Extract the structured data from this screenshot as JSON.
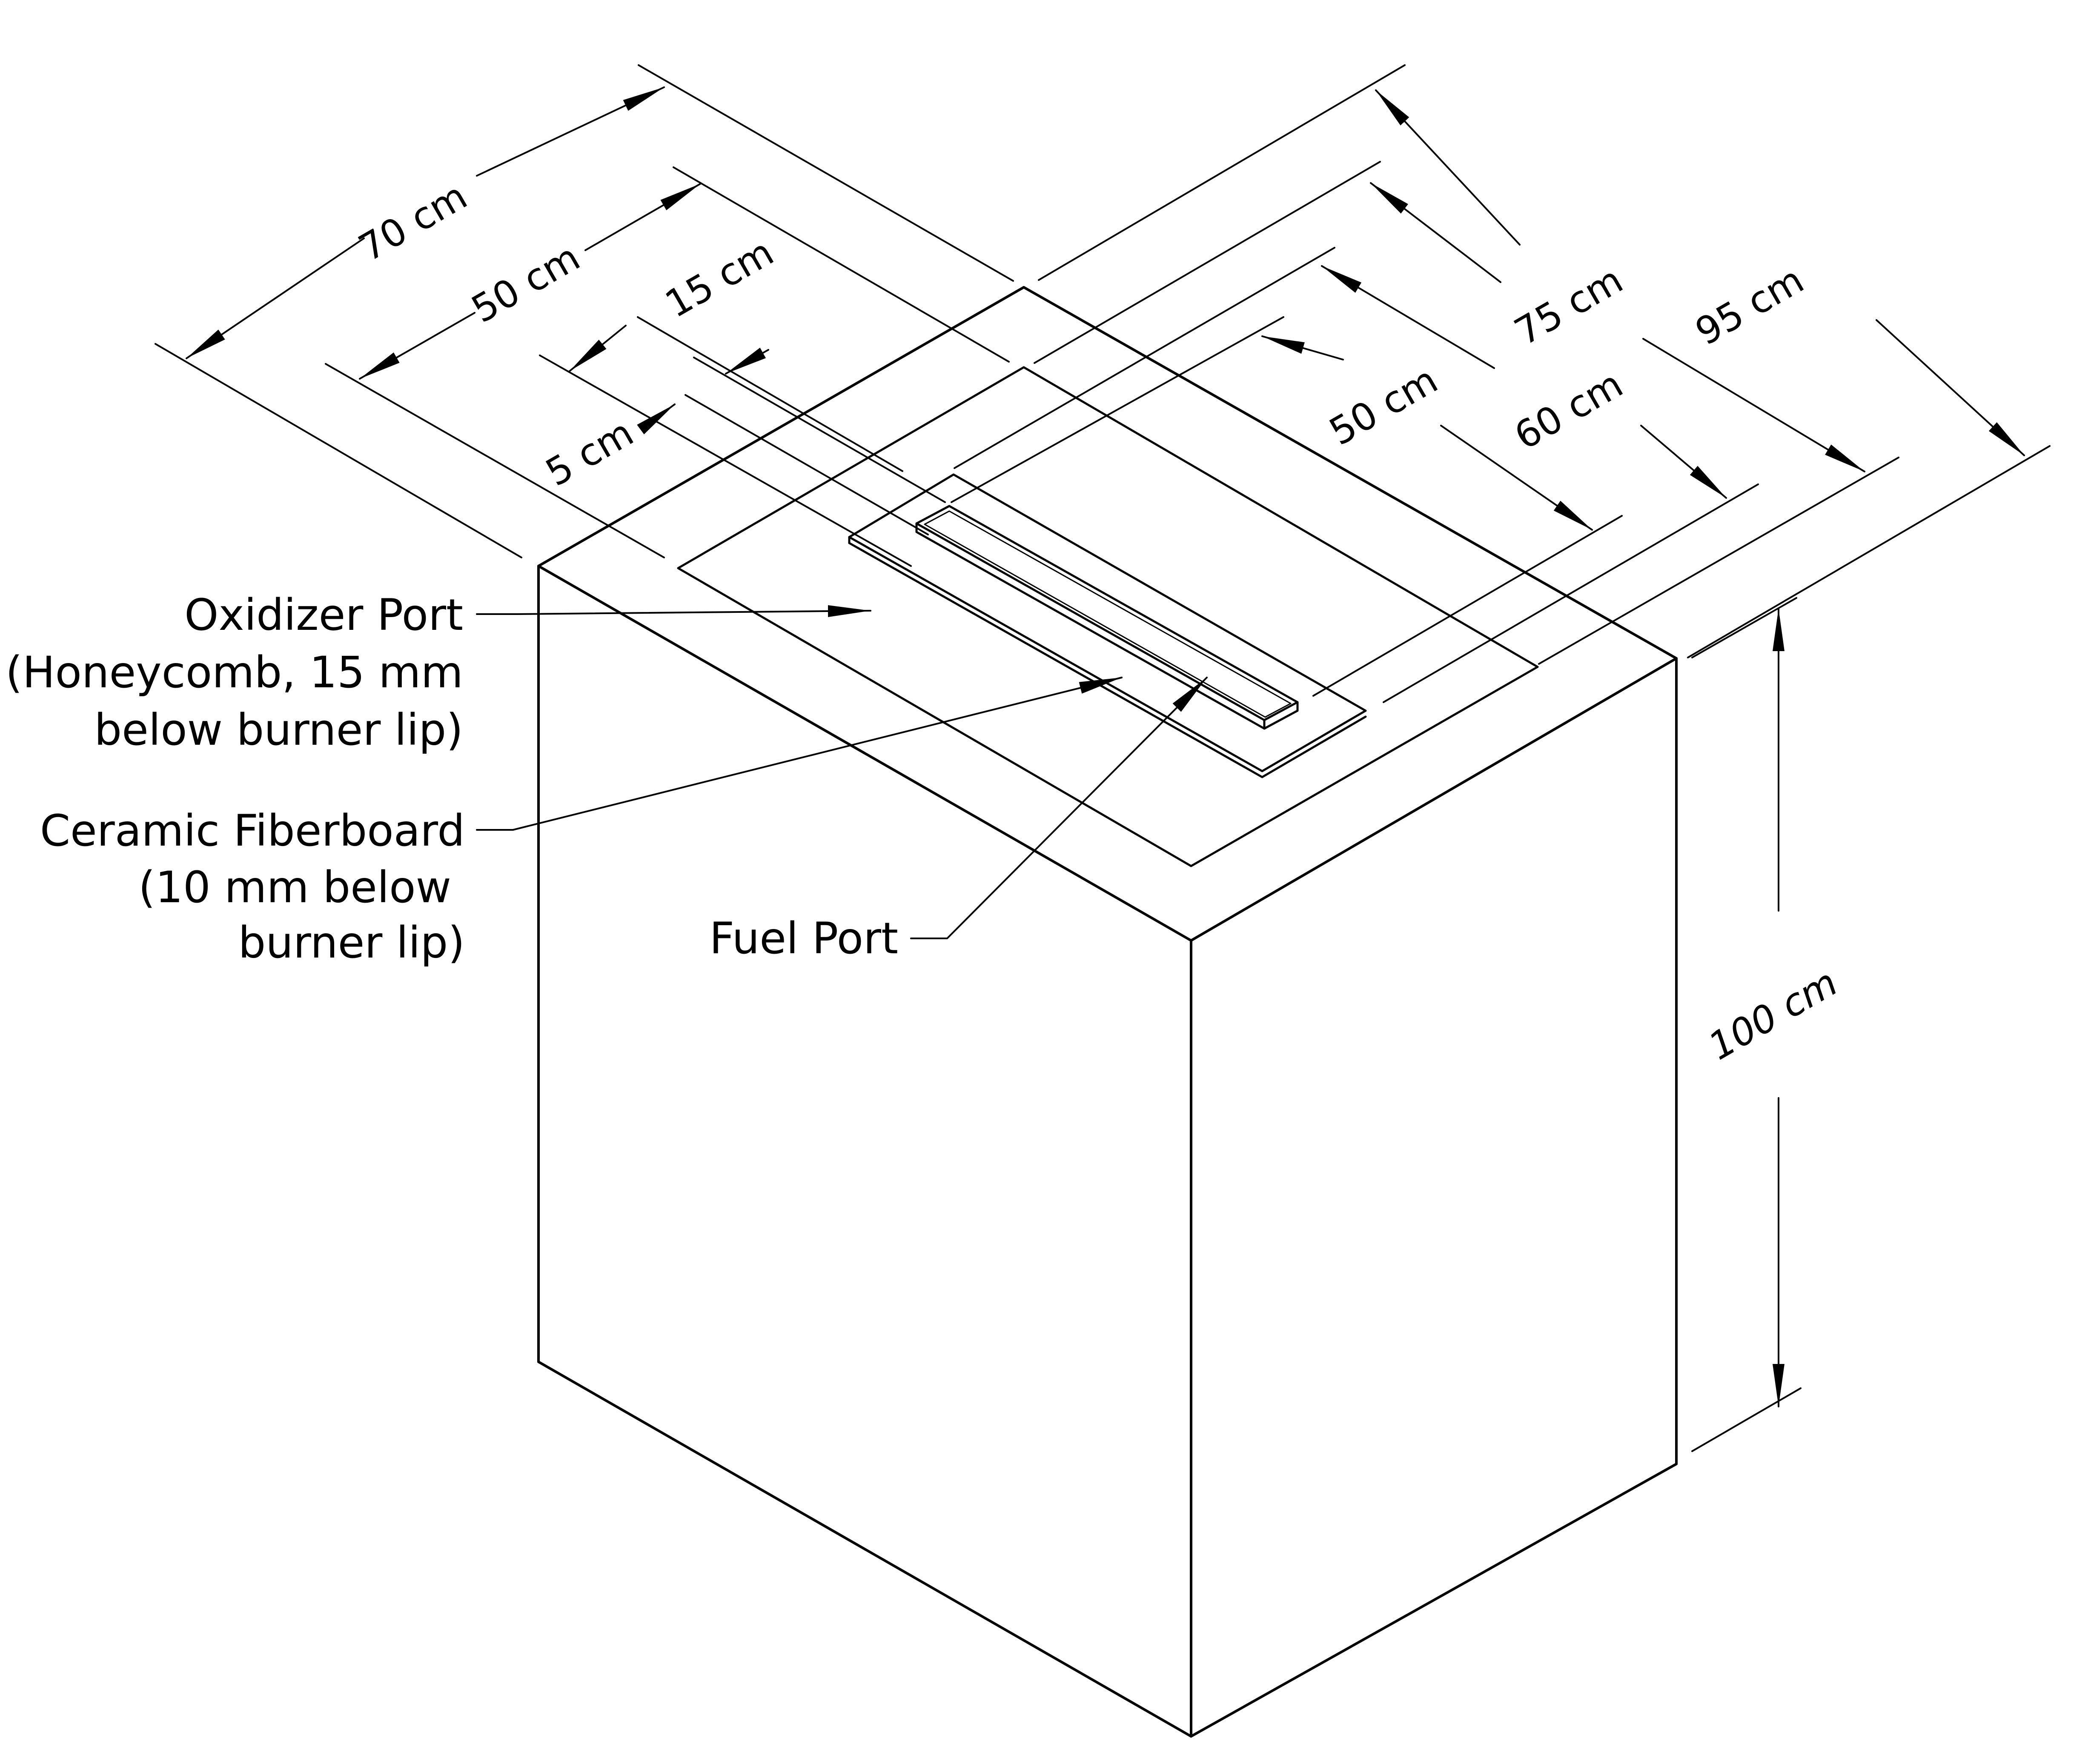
{
  "diagram": {
    "dimensions": {
      "outer_length": "70 cm",
      "inner_length": "50 cm",
      "fuel_length": "15 cm",
      "fuel_width": "5 cm",
      "outer_width": "95 cm",
      "tray_width": "75 cm",
      "fiberboard_width": "60 cm",
      "fuel_port_length": "50 cm",
      "height": "100 cm"
    },
    "callouts": {
      "oxidizer_line1": "Oxidizer Port",
      "oxidizer_line2": "(Honeycomb, 15 mm",
      "oxidizer_line3": "below burner lip)",
      "ceramic_line1": "Ceramic Fiberboard",
      "ceramic_line2": "(10 mm below",
      "ceramic_line3": "burner lip)",
      "fuel_port": "Fuel Port"
    }
  }
}
